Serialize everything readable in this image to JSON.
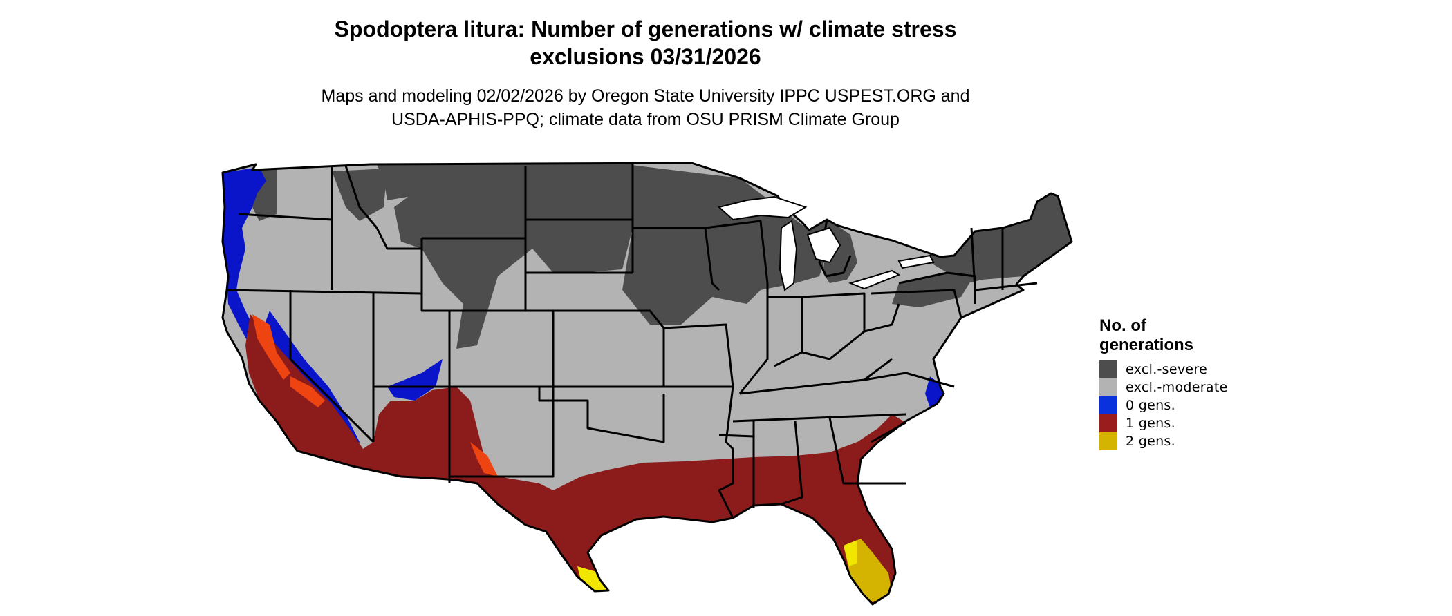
{
  "title": {
    "line1": "Spodoptera litura: Number of generations w/ climate stress",
    "line2": "exclusions 03/31/2026"
  },
  "subtitle": {
    "line1": "Maps and modeling 02/02/2026 by Oregon State University IPPC USPEST.ORG and",
    "line2": "USDA-APHIS-PPQ; climate data from OSU PRISM Climate Group"
  },
  "legend": {
    "title_line1": "No. of",
    "title_line2": "generations",
    "items": [
      {
        "label": "excl.-severe",
        "color": "#4d4d4d"
      },
      {
        "label": "excl.-moderate",
        "color": "#b3b3b3"
      },
      {
        "label": "0 gens.",
        "color": "#0a32dc"
      },
      {
        "label": "1 gens.",
        "color": "#9b1c1c"
      },
      {
        "label": "2 gens.",
        "color": "#d4b400"
      }
    ]
  },
  "colors": {
    "excl_severe": "#4d4d4d",
    "excl_moderate": "#b3b3b3",
    "zero_gens": "#0a14c8",
    "one_gen": "#8c1c1c",
    "one_gen_hot": "#ee4411",
    "two_gens": "#d4b400",
    "two_gens_bright": "#f0e600",
    "border": "#000000",
    "water": "#ffffff"
  }
}
